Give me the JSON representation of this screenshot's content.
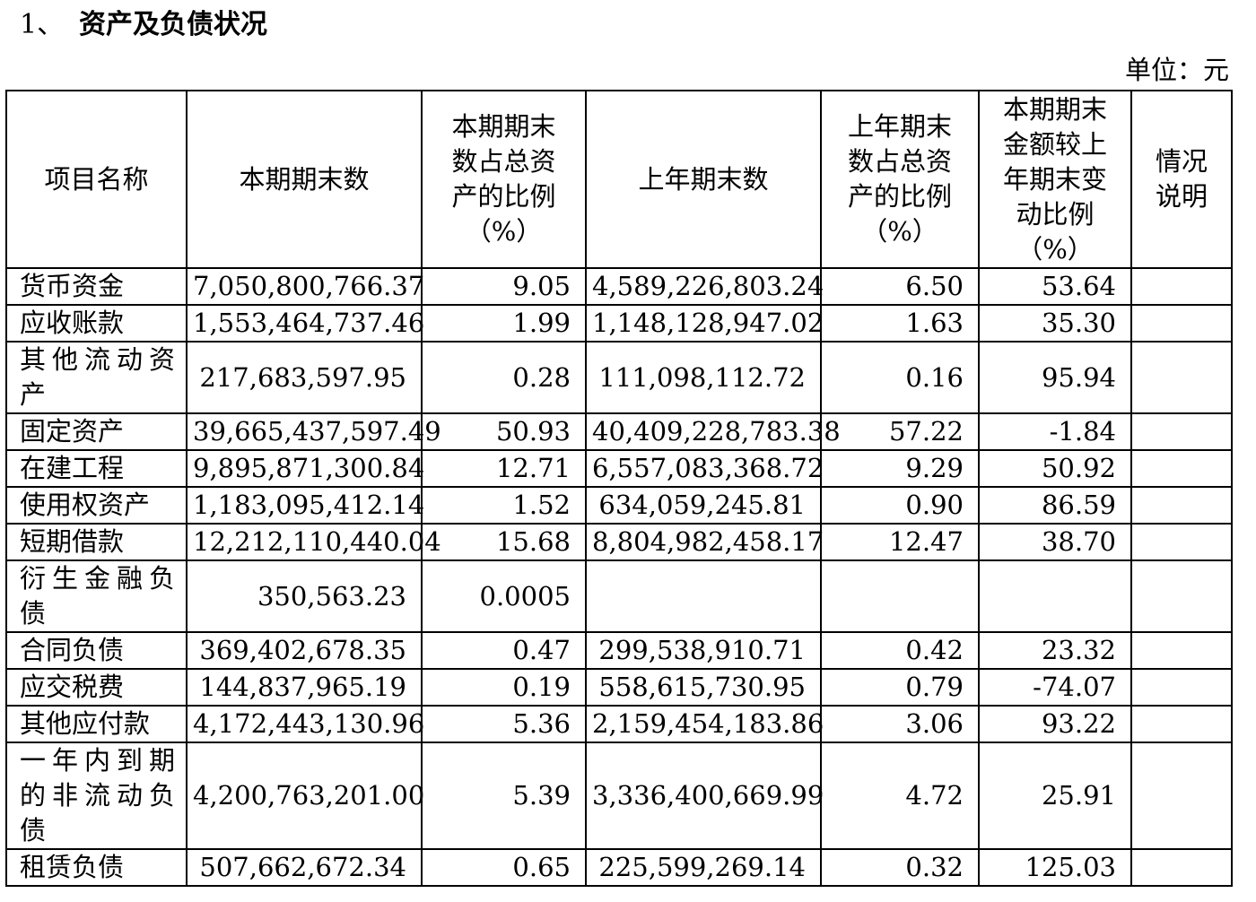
{
  "section": {
    "number": "1、",
    "title": "资产及负债状况"
  },
  "unit": "单位：元",
  "table": {
    "headers": [
      "项目名称",
      "本期期末数",
      "本期期末数占总资产的比例（%）",
      "上年期末数",
      "上年期末数占总资产的比例（%）",
      "本期期末金额较上年期末变动比例（%）",
      "情况说明"
    ],
    "rows": [
      {
        "name": "货币资金",
        "current": "7,050,800,766.37",
        "current_pct": "9.05",
        "prior": "4,589,226,803.24",
        "prior_pct": "6.50",
        "change_pct": "53.64",
        "note": ""
      },
      {
        "name": "应收账款",
        "current": "1,553,464,737.46",
        "current_pct": "1.99",
        "prior": "1,148,128,947.02",
        "prior_pct": "1.63",
        "change_pct": "35.30",
        "note": ""
      },
      {
        "name": "其他流动资产",
        "current": "217,683,597.95",
        "current_pct": "0.28",
        "prior": "111,098,112.72",
        "prior_pct": "0.16",
        "change_pct": "95.94",
        "note": ""
      },
      {
        "name": "固定资产",
        "current": "39,665,437,597.49",
        "current_pct": "50.93",
        "prior": "40,409,228,783.38",
        "prior_pct": "57.22",
        "change_pct": "-1.84",
        "note": ""
      },
      {
        "name": "在建工程",
        "current": "9,895,871,300.84",
        "current_pct": "12.71",
        "prior": "6,557,083,368.72",
        "prior_pct": "9.29",
        "change_pct": "50.92",
        "note": ""
      },
      {
        "name": "使用权资产",
        "current": "1,183,095,412.14",
        "current_pct": "1.52",
        "prior": "634,059,245.81",
        "prior_pct": "0.90",
        "change_pct": "86.59",
        "note": ""
      },
      {
        "name": "短期借款",
        "current": "12,212,110,440.04",
        "current_pct": "15.68",
        "prior": "8,804,982,458.17",
        "prior_pct": "12.47",
        "change_pct": "38.70",
        "note": ""
      },
      {
        "name": "衍生金融负债",
        "current": "350,563.23",
        "current_pct": "0.0005",
        "prior": "",
        "prior_pct": "",
        "change_pct": "",
        "note": ""
      },
      {
        "name": "合同负债",
        "current": "369,402,678.35",
        "current_pct": "0.47",
        "prior": "299,538,910.71",
        "prior_pct": "0.42",
        "change_pct": "23.32",
        "note": ""
      },
      {
        "name": "应交税费",
        "current": "144,837,965.19",
        "current_pct": "0.19",
        "prior": "558,615,730.95",
        "prior_pct": "0.79",
        "change_pct": "-74.07",
        "note": ""
      },
      {
        "name": "其他应付款",
        "current": "4,172,443,130.96",
        "current_pct": "5.36",
        "prior": "2,159,454,183.86",
        "prior_pct": "3.06",
        "change_pct": "93.22",
        "note": ""
      },
      {
        "name": "一年内到期的非流动负债",
        "current": "4,200,763,201.00",
        "current_pct": "5.39",
        "prior": "3,336,400,669.99",
        "prior_pct": "4.72",
        "change_pct": "25.91",
        "note": ""
      },
      {
        "name": "租赁负债",
        "current": "507,662,672.34",
        "current_pct": "0.65",
        "prior": "225,599,269.14",
        "prior_pct": "0.32",
        "change_pct": "125.03",
        "note": ""
      }
    ]
  }
}
